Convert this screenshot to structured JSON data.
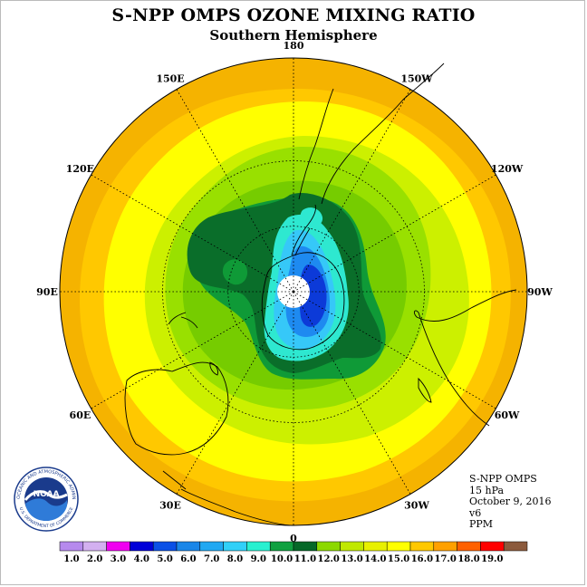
{
  "title": "S-NPP OMPS OZONE MIXING RATIO",
  "subtitle": "Southern Hemisphere",
  "longitude_labels": [
    {
      "text": "90W",
      "lon": -90
    },
    {
      "text": "60W",
      "lon": -60
    },
    {
      "text": "30W",
      "lon": -30
    },
    {
      "text": "0",
      "lon": 0
    },
    {
      "text": "30E",
      "lon": 30
    },
    {
      "text": "60E",
      "lon": 60
    },
    {
      "text": "90E",
      "lon": 90
    },
    {
      "text": "120E",
      "lon": 120
    },
    {
      "text": "150E",
      "lon": 150
    },
    {
      "text": "180",
      "lon": 180
    },
    {
      "text": "150W",
      "lon": -150
    },
    {
      "text": "120W",
      "lon": -120
    }
  ],
  "info": {
    "instrument": "S-NPP OMPS",
    "level": "15 hPa",
    "date": "October 9, 2016",
    "version": "v6",
    "units": "PPM"
  },
  "logo": {
    "text": "NOAA",
    "ring_text": "NATIONAL OCEANIC AND ATMOSPHERIC ADMINISTRATION",
    "ring_text_bottom": "U.S. DEPARTMENT OF COMMERCE"
  },
  "colorbar": {
    "labels": [
      "1.0",
      "2.0",
      "3.0",
      "4.0",
      "5.0",
      "6.0",
      "7.0",
      "8.0",
      "9.0",
      "10.0",
      "11.0",
      "12.0",
      "13.0",
      "14.0",
      "15.0",
      "16.0",
      "17.0",
      "18.0",
      "19.0"
    ],
    "colors": [
      "#b68aed",
      "#d3b0f0",
      "#f000f0",
      "#0000d8",
      "#0a50e6",
      "#1a86e8",
      "#20a8f2",
      "#30d0f8",
      "#28f0d0",
      "#10a040",
      "#066828",
      "#8cd800",
      "#c0e800",
      "#e8f000",
      "#ffff00",
      "#ffc800",
      "#ffa000",
      "#ff6000",
      "#ff0000",
      "#8b5a3c"
    ]
  },
  "colors": {
    "band_outer": "#f5b300",
    "band_16": "#ffc800",
    "band_15": "#ffff00",
    "band_14": "#ccf000",
    "band_13": "#99e000",
    "band_12": "#76cc00",
    "band_11": "#0f9a37",
    "band_10": "#0a6e2a",
    "vortex_edge": "#2ee8d0",
    "vortex_mid": "#36c8f8",
    "vortex_inner": "#1e8af0",
    "vortex_core": "#0c3ad8"
  }
}
